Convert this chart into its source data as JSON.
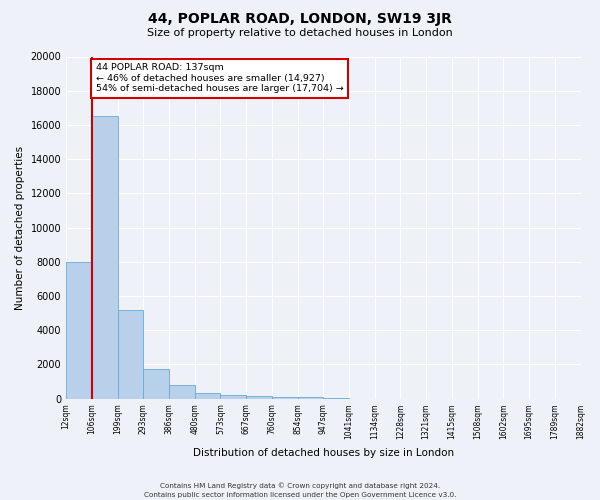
{
  "title": "44, POPLAR ROAD, LONDON, SW19 3JR",
  "subtitle": "Size of property relative to detached houses in London",
  "xlabel": "Distribution of detached houses by size in London",
  "ylabel": "Number of detached properties",
  "bar_values": [
    8000,
    16500,
    5200,
    1750,
    800,
    350,
    200,
    150,
    100,
    80,
    60,
    0,
    0,
    0,
    0,
    0,
    0,
    0,
    0,
    0
  ],
  "bar_labels": [
    "12sqm",
    "106sqm",
    "199sqm",
    "293sqm",
    "386sqm",
    "480sqm",
    "573sqm",
    "667sqm",
    "760sqm",
    "854sqm",
    "947sqm",
    "1041sqm",
    "1134sqm",
    "1228sqm",
    "1321sqm",
    "1415sqm",
    "1508sqm",
    "1602sqm",
    "1695sqm",
    "1789sqm",
    "1882sqm"
  ],
  "bar_color": "#b8d0ea",
  "bar_edge_color": "#6aaad4",
  "ylim": [
    0,
    20000
  ],
  "yticks": [
    0,
    2000,
    4000,
    6000,
    8000,
    10000,
    12000,
    14000,
    16000,
    18000,
    20000
  ],
  "property_line_color": "#cc0000",
  "annotation_line1": "44 POPLAR ROAD: 137sqm",
  "annotation_line2": "← 46% of detached houses are smaller (14,927)",
  "annotation_line3": "54% of semi-detached houses are larger (17,704) →",
  "annotation_box_color": "#ffffff",
  "annotation_box_edge": "#cc0000",
  "footer1": "Contains HM Land Registry data © Crown copyright and database right 2024.",
  "footer2": "Contains public sector information licensed under the Open Government Licence v3.0.",
  "background_color": "#eef2f8",
  "plot_background": "#eef2f8",
  "grid_color": "#ffffff",
  "figsize": [
    6.0,
    5.0
  ],
  "dpi": 100
}
